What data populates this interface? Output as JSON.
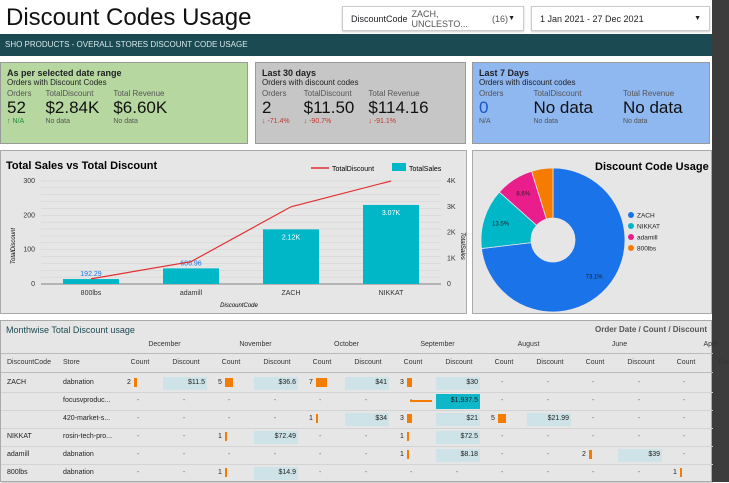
{
  "header": {
    "title": "Discount Codes Usage",
    "code_filter_label": "DiscountCode",
    "code_filter_value": "ZACH, UNCLESTO...",
    "code_filter_count": "(16)",
    "date_range": "1 Jan 2021 - 27 Dec 2021",
    "banner": "SHO PRODUCTS - OVERALL STORES DISCOUNT CODE USAGE"
  },
  "cards": [
    {
      "title": "As per selected date range",
      "subtitle": "Orders with Discount Codes",
      "color": "#b7d7a0",
      "metrics": [
        {
          "label": "Orders",
          "value": "52",
          "delta": "N/A"
        },
        {
          "label": "TotalDiscount",
          "value": "$2.84K",
          "delta": "No data"
        },
        {
          "label": "Total Revenue",
          "value": "$6.60K",
          "delta": "No data"
        }
      ]
    },
    {
      "title": "Last 30 days",
      "subtitle": "Orders with discount codes",
      "color": "#c6c6c6",
      "metrics": [
        {
          "label": "Orders",
          "value": "2",
          "delta": "-71.4%"
        },
        {
          "label": "TotalDiscount",
          "value": "$11.50",
          "delta": "-90.7%"
        },
        {
          "label": "Total Revenue",
          "value": "$114.16",
          "delta": "-91.1%"
        }
      ]
    },
    {
      "title": "Last 7 Days",
      "subtitle": "Orders with discount codes",
      "color": "#8fb7f0",
      "metrics": [
        {
          "label": "Orders",
          "value": "0",
          "delta": "N/A"
        },
        {
          "label": "TotalDiscount",
          "value": "No data",
          "delta": "No data"
        },
        {
          "label": "Total Revenue",
          "value": "No data",
          "delta": "No data"
        }
      ]
    }
  ],
  "chart_data": [
    {
      "type": "bar",
      "title": "Total Sales vs Total Discount",
      "xlabel": "DiscountCode",
      "ylabel": "TotalDiscount",
      "y2label": "TotalSales",
      "categories": [
        "800lbs",
        "adamill",
        "ZACH",
        "NIKKAT"
      ],
      "series": [
        {
          "name": "TotalSales",
          "kind": "bar",
          "axis": "right",
          "color": "#00b7c7",
          "values": [
            192.29,
            606.96,
            2120,
            3070
          ],
          "labels": [
            "192.29",
            "606.96",
            "2.12K",
            "3.07K"
          ]
        },
        {
          "name": "TotalDiscount",
          "kind": "line",
          "axis": "left",
          "color": "#e03030",
          "values": [
            15,
            65,
            225,
            300
          ]
        }
      ],
      "ylim": [
        0,
        300
      ],
      "yticks": [
        "0",
        "100",
        "200",
        "300"
      ],
      "y2lim": [
        0,
        4000
      ],
      "y2ticks": [
        "0",
        "1K",
        "2K",
        "3K",
        "4K"
      ],
      "legend": "top-right"
    },
    {
      "type": "pie",
      "title": "Discount Code Usage",
      "labels": [
        "ZACH",
        "NIKKAT",
        "adamill",
        "800lbs"
      ],
      "values": [
        73.1,
        13.5,
        8.6,
        4.8
      ],
      "slice_labels": [
        "73.1%",
        "13.5%",
        "8.6%",
        ""
      ],
      "colors": [
        "#1a73e8",
        "#00b7c7",
        "#e91e8c",
        "#f57c00"
      ],
      "donut": true,
      "legend": "right"
    }
  ],
  "table": {
    "title": "Monthwise Total Discount usage",
    "breadcrumb": "Order Date / Count / Discount",
    "months": [
      "December",
      "November",
      "October",
      "September",
      "August",
      "June",
      "April"
    ],
    "col_labels": [
      "DiscountCode",
      "Store",
      "Count",
      "Discount"
    ],
    "rows": [
      {
        "code": "ZACH",
        "store": "dabnation",
        "cells": [
          [
            "2",
            "$11.5"
          ],
          [
            "5",
            "$36.6"
          ],
          [
            "7",
            "$41"
          ],
          [
            "3",
            "$30"
          ],
          [
            "-",
            "-"
          ],
          [
            "-",
            "-"
          ],
          [
            "-",
            "-"
          ]
        ]
      },
      {
        "code": "",
        "store": "focusvproduc...",
        "cells": [
          [
            "-",
            "-"
          ],
          [
            "-",
            "-"
          ],
          [
            "-",
            "-"
          ],
          [
            "-",
            "$1,937.5"
          ],
          [
            "-",
            "-"
          ],
          [
            "-",
            "-"
          ],
          [
            "-",
            "-"
          ]
        ]
      },
      {
        "code": "",
        "store": "420-market-s...",
        "cells": [
          [
            "-",
            "-"
          ],
          [
            "-",
            "-"
          ],
          [
            "1",
            "$34"
          ],
          [
            "3",
            "$21"
          ],
          [
            "5",
            "$21.99"
          ],
          [
            "-",
            "-"
          ],
          [
            "-",
            "-"
          ]
        ]
      },
      {
        "code": "NIKKAT",
        "store": "rosin-tech-pro...",
        "cells": [
          [
            "-",
            "-"
          ],
          [
            "1",
            "$72.49"
          ],
          [
            "-",
            "-"
          ],
          [
            "1",
            "$72.5"
          ],
          [
            "-",
            "-"
          ],
          [
            "-",
            "-"
          ],
          [
            "-",
            "-"
          ]
        ]
      },
      {
        "code": "adamill",
        "store": "dabnation",
        "cells": [
          [
            "-",
            "-"
          ],
          [
            "-",
            "-"
          ],
          [
            "-",
            "-"
          ],
          [
            "1",
            "$8.18"
          ],
          [
            "-",
            "-"
          ],
          [
            "2",
            "$39"
          ],
          [
            "-",
            "-"
          ]
        ]
      },
      {
        "code": "800lbs",
        "store": "dabnation",
        "cells": [
          [
            "-",
            "-"
          ],
          [
            "1",
            "$14.9"
          ],
          [
            "-",
            "-"
          ],
          [
            "-",
            "-"
          ],
          [
            "-",
            "-"
          ],
          [
            "-",
            "-"
          ],
          [
            "1",
            "-"
          ]
        ]
      }
    ]
  }
}
